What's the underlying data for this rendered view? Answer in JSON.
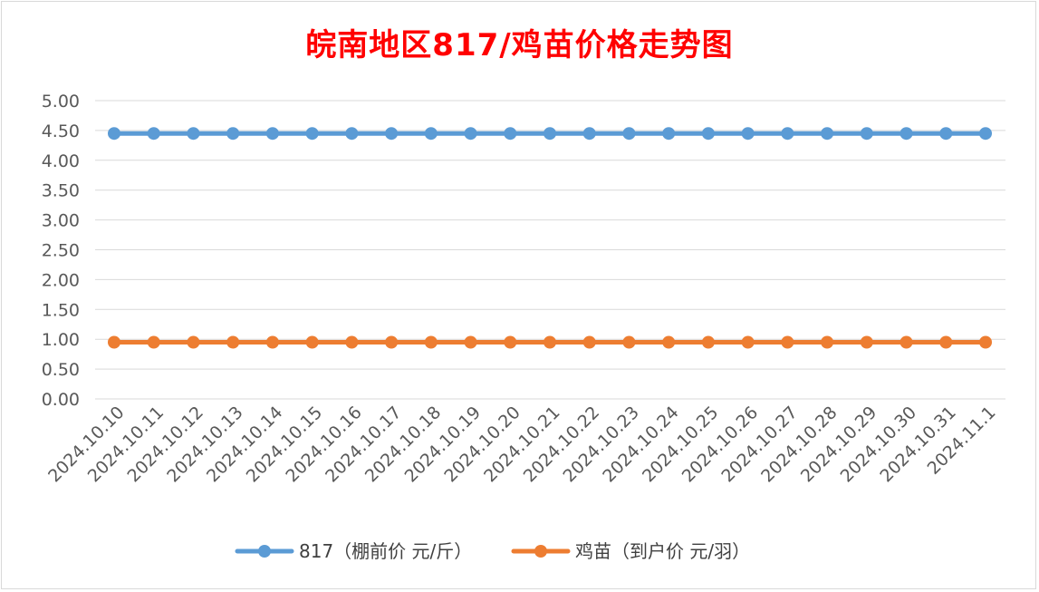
{
  "chart_data": {
    "type": "line",
    "title": "皖南地区817/鸡苗价格走势图",
    "categories": [
      "2024.10.10",
      "2024.10.11",
      "2024.10.12",
      "2024.10.13",
      "2024.10.14",
      "2024.10.15",
      "2024.10.16",
      "2024.10.17",
      "2024.10.18",
      "2024.10.19",
      "2024.10.20",
      "2024.10.21",
      "2024.10.22",
      "2024.10.23",
      "2024.10.24",
      "2024.10.25",
      "2024.10.26",
      "2024.10.27",
      "2024.10.28",
      "2024.10.29",
      "2024.10.30",
      "2024.10.31",
      "2024.11.1"
    ],
    "series": [
      {
        "name": "817（棚前价 元/斤）",
        "color": "#5b9bd5",
        "values": [
          4.45,
          4.45,
          4.45,
          4.45,
          4.45,
          4.45,
          4.45,
          4.45,
          4.45,
          4.45,
          4.45,
          4.45,
          4.45,
          4.45,
          4.45,
          4.45,
          4.45,
          4.45,
          4.45,
          4.45,
          4.45,
          4.45,
          4.45
        ]
      },
      {
        "name": "鸡苗（到户价 元/羽）",
        "color": "#ed7d31",
        "values": [
          0.95,
          0.95,
          0.95,
          0.95,
          0.95,
          0.95,
          0.95,
          0.95,
          0.95,
          0.95,
          0.95,
          0.95,
          0.95,
          0.95,
          0.95,
          0.95,
          0.95,
          0.95,
          0.95,
          0.95,
          0.95,
          0.95,
          0.95
        ]
      }
    ],
    "yticks": [
      "0.00",
      "0.50",
      "1.00",
      "1.50",
      "2.00",
      "2.50",
      "3.00",
      "3.50",
      "4.00",
      "4.50",
      "5.00"
    ],
    "ylim": [
      0,
      5
    ],
    "grid": true,
    "legend": "bottom"
  }
}
